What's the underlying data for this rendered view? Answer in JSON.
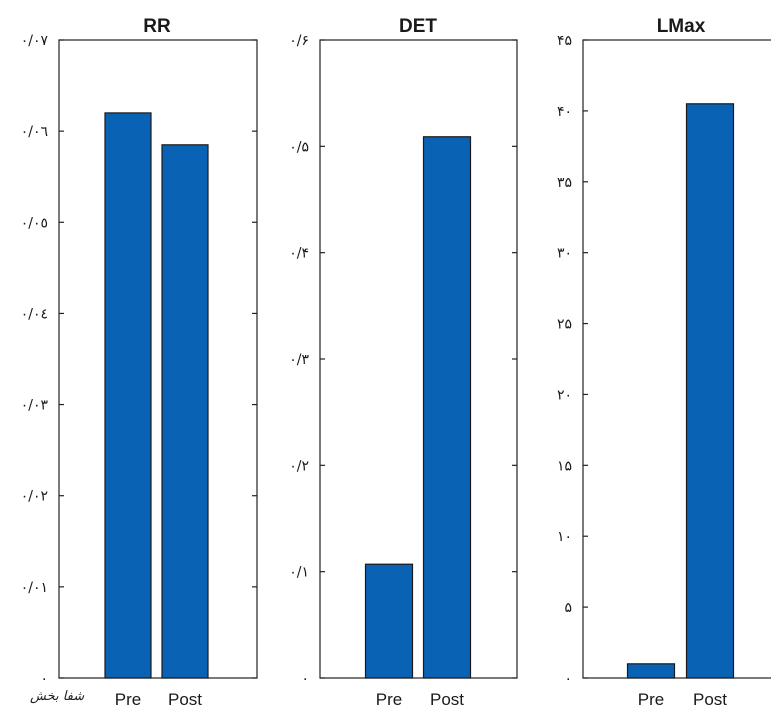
{
  "chart_data": [
    {
      "type": "bar",
      "title": "RR",
      "categories": [
        "Pre",
        "Post"
      ],
      "values": [
        0.062,
        0.0585
      ],
      "ylim": [
        0,
        0.07
      ],
      "yticks": [
        0,
        0.01,
        0.02,
        0.03,
        0.04,
        0.05,
        0.06,
        0.07
      ],
      "ytick_labels": [
        "٠",
        "٠/٠١",
        "٠/٠٢",
        "٠/٠٣",
        "٠/٠٤",
        "٠/٠٥",
        "٠/٠٦",
        "٠/٠٧"
      ],
      "grid": false
    },
    {
      "type": "bar",
      "title": "DET",
      "categories": [
        "Pre",
        "Post"
      ],
      "values": [
        0.107,
        0.509
      ],
      "ylim": [
        0,
        0.6
      ],
      "yticks": [
        0,
        0.1,
        0.2,
        0.3,
        0.4,
        0.5,
        0.6
      ],
      "ytick_labels": [
        "٠",
        "٠/١",
        "٠/٢",
        "٠/٣",
        "٠/۴",
        "٠/۵",
        "٠/۶"
      ],
      "grid": false
    },
    {
      "type": "bar",
      "title": "LMax",
      "categories": [
        "Pre",
        "Post"
      ],
      "values": [
        1,
        40.5
      ],
      "ylim": [
        0,
        45
      ],
      "yticks": [
        0,
        5,
        10,
        15,
        20,
        25,
        30,
        35,
        40,
        45
      ],
      "ytick_labels": [
        "٠",
        "۵",
        "١٠",
        "١۵",
        "٢٠",
        "٢۵",
        "٣٠",
        "٣۵",
        "۴٠",
        "۴۵"
      ],
      "grid": false
    }
  ],
  "colors": {
    "bar": "#0a62b5",
    "axis": "#222222"
  },
  "watermark": "شفا بخش"
}
